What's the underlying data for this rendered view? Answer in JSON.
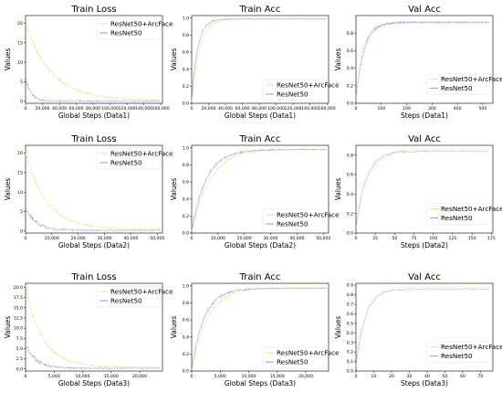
{
  "colors": {
    "arcface": "#E4E87A",
    "resnet50": "#8D8BE6"
  },
  "chart_data": [
    {
      "type": "line",
      "title": "Train Loss",
      "xlabel": "Global Steps (Data1)",
      "ylabel": "Values",
      "xlim": [
        0,
        162000
      ],
      "ylim": [
        -0.5,
        22
      ],
      "xticks": [
        0,
        20000,
        40000,
        60000,
        80000,
        100000,
        120000,
        140000,
        160000
      ],
      "xtick_labels": [
        "0",
        "20,000",
        "40,000",
        "60,000",
        "80,000",
        "100,000",
        "120,000",
        "140,000",
        "160,000"
      ],
      "yticks": [
        0,
        5,
        10,
        15,
        20
      ],
      "ytick_labels": [
        "0",
        "5",
        "10",
        "15",
        "20"
      ],
      "legend_position": "top-right",
      "series": [
        {
          "name": "ResNet50+ArcFace",
          "key": "arcface",
          "kind": "decay",
          "start": 20,
          "end": 0.3,
          "rate": 30000
        },
        {
          "name": "ResNet50",
          "key": "resnet50",
          "kind": "decay",
          "start": 6,
          "end": 0.1,
          "rate": 6000
        }
      ]
    },
    {
      "type": "line",
      "title": "Train Acc",
      "xlabel": "Global Steps (Data1)",
      "ylabel": "Values",
      "xlim": [
        0,
        162000
      ],
      "ylim": [
        0,
        1.03
      ],
      "xticks": [
        0,
        20000,
        40000,
        60000,
        80000,
        100000,
        120000,
        140000,
        160000
      ],
      "xtick_labels": [
        "0",
        "20,000",
        "40,000",
        "60,000",
        "80,000",
        "100,000",
        "120,000",
        "140,000",
        "160,000"
      ],
      "yticks": [
        0.0,
        0.2,
        0.4,
        0.6,
        0.8,
        1.0
      ],
      "ytick_labels": [
        "0.0",
        "0.2",
        "0.4",
        "0.6",
        "0.8",
        "1.0"
      ],
      "legend_position": "bottom-right",
      "series": [
        {
          "name": "ResNet50+ArcFace",
          "key": "arcface",
          "kind": "rise",
          "start": 0.02,
          "end": 0.99,
          "rate": 9000
        },
        {
          "name": "ResNet50",
          "key": "resnet50",
          "kind": "rise",
          "start": 0.02,
          "end": 0.99,
          "rate": 7000
        }
      ]
    },
    {
      "type": "line",
      "title": "Val Acc",
      "xlabel": "Steps (Data1)",
      "ylabel": "Values",
      "xlim": [
        0,
        540
      ],
      "ylim": [
        0,
        1.0
      ],
      "xticks": [
        0,
        100,
        200,
        300,
        400,
        500
      ],
      "xtick_labels": [
        "0",
        "100",
        "200",
        "300",
        "400",
        "500"
      ],
      "yticks": [
        0.0,
        0.2,
        0.4,
        0.6,
        0.8
      ],
      "ytick_labels": [
        "0.0",
        "0.2",
        "0.4",
        "0.6",
        "0.8"
      ],
      "legend_position": "center-right",
      "series": [
        {
          "name": "ResNet50+ArcFace",
          "key": "arcface",
          "kind": "rise",
          "start": 0.05,
          "end": 0.93,
          "rate": 35
        },
        {
          "name": "ResNet50",
          "key": "resnet50",
          "kind": "rise",
          "start": 0.05,
          "end": 0.92,
          "rate": 30
        }
      ]
    },
    {
      "type": "line",
      "title": "Train Loss",
      "xlabel": "Global Steps (Data2)",
      "ylabel": "Values",
      "xlim": [
        0,
        52000
      ],
      "ylim": [
        -0.5,
        22
      ],
      "xticks": [
        0,
        10000,
        20000,
        30000,
        40000,
        50000
      ],
      "xtick_labels": [
        "0",
        "10,000",
        "20,000",
        "30,000",
        "40,000",
        "50,000"
      ],
      "yticks": [
        0,
        5,
        10,
        15,
        20
      ],
      "ytick_labels": [
        "0",
        "5",
        "10",
        "15",
        "20"
      ],
      "legend_position": "top-right",
      "series": [
        {
          "name": "ResNet50+ArcFace",
          "key": "arcface",
          "kind": "decay",
          "start": 20,
          "end": 0.5,
          "rate": 8000
        },
        {
          "name": "ResNet50",
          "key": "resnet50",
          "kind": "decay",
          "start": 6,
          "end": 0.2,
          "rate": 4000
        }
      ]
    },
    {
      "type": "line",
      "title": "Train Acc",
      "xlabel": "Global Steps (Data2)",
      "ylabel": "Values",
      "xlim": [
        0,
        52000
      ],
      "ylim": [
        0,
        1.03
      ],
      "xticks": [
        0,
        10000,
        20000,
        30000,
        40000,
        50000
      ],
      "xtick_labels": [
        "0",
        "10,000",
        "20,000",
        "30,000",
        "40,000",
        "50,000"
      ],
      "yticks": [
        0.0,
        0.2,
        0.4,
        0.6,
        0.8,
        1.0
      ],
      "ytick_labels": [
        "0.0",
        "0.2",
        "0.4",
        "0.6",
        "0.8",
        "1.0"
      ],
      "legend_position": "bottom-right",
      "series": [
        {
          "name": "ResNet50+ArcFace",
          "key": "arcface",
          "kind": "rise",
          "start": 0.02,
          "end": 0.99,
          "rate": 7000
        },
        {
          "name": "ResNet50",
          "key": "resnet50",
          "kind": "rise",
          "start": 0.02,
          "end": 0.98,
          "rate": 5500
        }
      ]
    },
    {
      "type": "line",
      "title": "Val Acc",
      "xlabel": "Steps (Data2)",
      "ylabel": "Values",
      "xlim": [
        0,
        177
      ],
      "ylim": [
        0,
        0.9
      ],
      "xticks": [
        0,
        25,
        50,
        75,
        100,
        125,
        150,
        175
      ],
      "xtick_labels": [
        "0",
        "25",
        "50",
        "75",
        "100",
        "125",
        "150",
        "175"
      ],
      "yticks": [
        0.0,
        0.2,
        0.4,
        0.6,
        0.8
      ],
      "ytick_labels": [
        "0.0",
        "0.2",
        "0.4",
        "0.6",
        "0.8"
      ],
      "legend_position": "center-right",
      "series": [
        {
          "name": "ResNet50+ArcFace",
          "key": "arcface",
          "kind": "rise",
          "start": 0.05,
          "end": 0.86,
          "rate": 16
        },
        {
          "name": "ResNet50",
          "key": "resnet50",
          "kind": "rise",
          "start": 0.05,
          "end": 0.84,
          "rate": 13
        }
      ]
    },
    {
      "type": "line",
      "title": "Train Loss",
      "xlabel": "Global Steps (Data3)",
      "ylabel": "Values",
      "xlim": [
        0,
        24000
      ],
      "ylim": [
        -0.5,
        21
      ],
      "xticks": [
        0,
        5000,
        10000,
        15000,
        20000
      ],
      "xtick_labels": [
        "0",
        "5,000",
        "10,000",
        "15,000",
        "20,000"
      ],
      "yticks": [
        0.0,
        2.5,
        5.0,
        7.5,
        10.0,
        12.5,
        15.0,
        17.5,
        20.0
      ],
      "ytick_labels": [
        "0.0",
        "2.5",
        "5.0",
        "7.5",
        "10.0",
        "12.5",
        "15.0",
        "17.5",
        "20.0"
      ],
      "legend_position": "top-right",
      "series": [
        {
          "name": "ResNet50+ArcFace",
          "key": "arcface",
          "kind": "decay",
          "start": 20,
          "end": 0.5,
          "rate": 3000
        },
        {
          "name": "ResNet50",
          "key": "resnet50",
          "kind": "decay",
          "start": 6,
          "end": 0.2,
          "rate": 1800
        }
      ]
    },
    {
      "type": "line",
      "title": "Train Acc",
      "xlabel": "Global Steps (Data3)",
      "ylabel": "Values",
      "xlim": [
        0,
        24000
      ],
      "ylim": [
        0,
        1.03
      ],
      "xticks": [
        0,
        5000,
        10000,
        15000,
        20000
      ],
      "xtick_labels": [
        "0",
        "5,000",
        "10,000",
        "15,000",
        "20,000"
      ],
      "yticks": [
        0.0,
        0.2,
        0.4,
        0.6,
        0.8,
        1.0
      ],
      "ytick_labels": [
        "0.0",
        "0.2",
        "0.4",
        "0.6",
        "0.8",
        "1.0"
      ],
      "legend_position": "bottom-right",
      "series": [
        {
          "name": "ResNet50+ArcFace",
          "key": "arcface",
          "kind": "rise",
          "start": 0.02,
          "end": 0.98,
          "rate": 2800
        },
        {
          "name": "ResNet50",
          "key": "resnet50",
          "kind": "rise",
          "start": 0.02,
          "end": 0.97,
          "rate": 2200
        }
      ]
    },
    {
      "type": "line",
      "title": "Val Acc",
      "xlabel": "Steps (Data3)",
      "ylabel": "Values",
      "xlim": [
        0,
        77
      ],
      "ylim": [
        0,
        0.92
      ],
      "xticks": [
        0,
        10,
        20,
        30,
        40,
        50,
        60,
        70
      ],
      "xtick_labels": [
        "0",
        "10",
        "20",
        "30",
        "40",
        "50",
        "60",
        "70"
      ],
      "yticks": [
        0.0,
        0.1,
        0.2,
        0.3,
        0.4,
        0.5,
        0.6,
        0.7,
        0.8,
        0.9
      ],
      "ytick_labels": [
        "0.0",
        "0.1",
        "0.2",
        "0.3",
        "0.4",
        "0.5",
        "0.6",
        "0.7",
        "0.8",
        "0.9"
      ],
      "legend_position": "center-right",
      "series": [
        {
          "name": "ResNet50+ArcFace",
          "key": "arcface",
          "kind": "rise",
          "start": 0.05,
          "end": 0.88,
          "rate": 6
        },
        {
          "name": "ResNet50",
          "key": "resnet50",
          "kind": "rise",
          "start": 0.05,
          "end": 0.86,
          "rate": 5
        }
      ]
    }
  ]
}
